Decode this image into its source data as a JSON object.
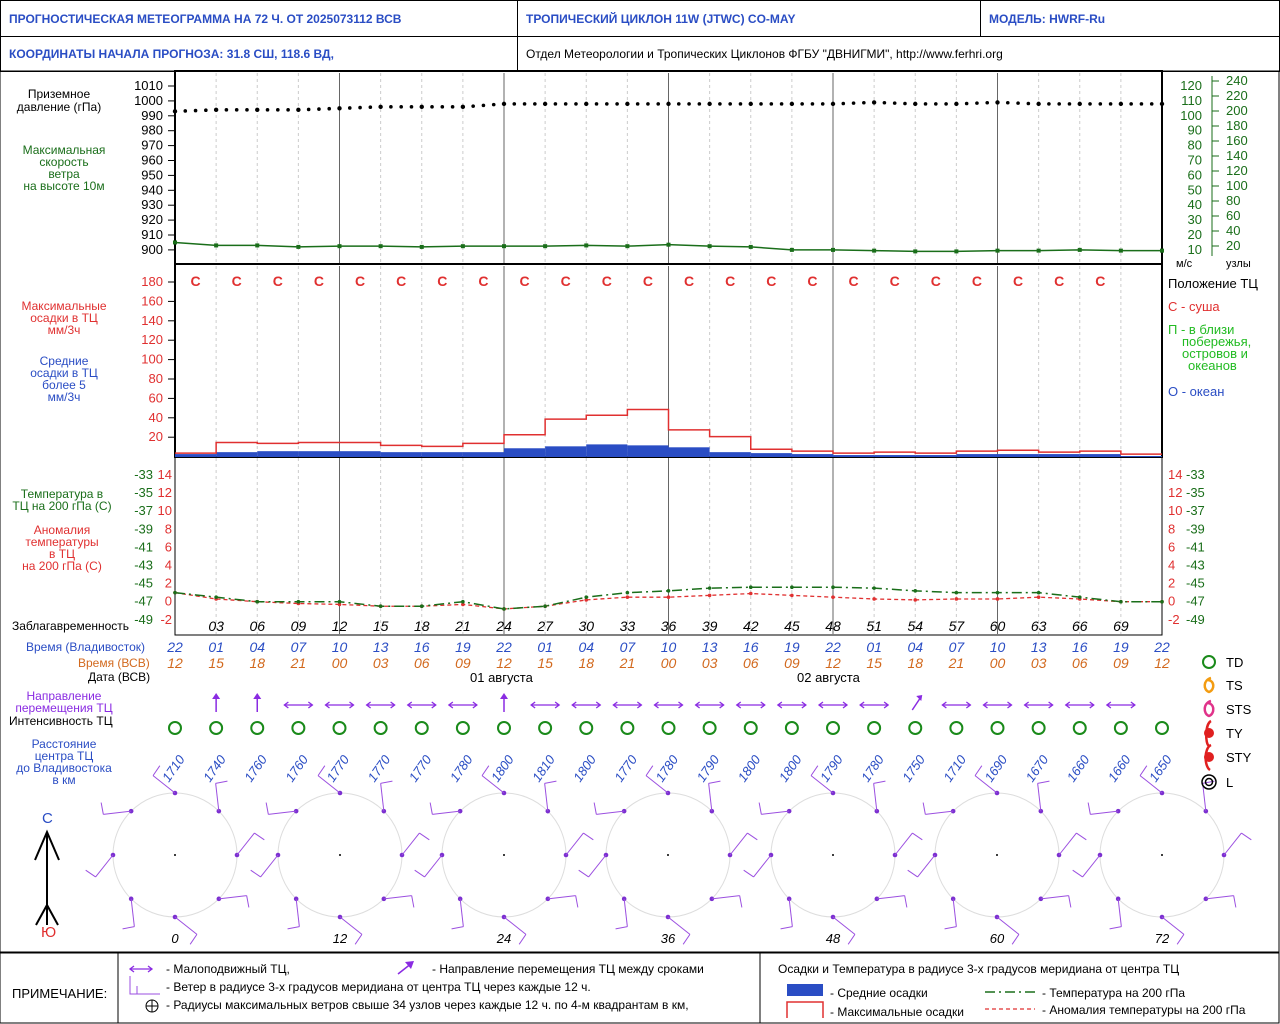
{
  "header": {
    "title": "ПРОГНОСТИЧЕСКАЯ МЕТЕОГРАММА НА 72 Ч. ОТ 2025073112 ВСВ",
    "cyclone": "ТРОПИЧЕСКИЙ ЦИКЛОН  11W  (JTWC)   CO-MAY",
    "model": "МОДЕЛЬ:   HWRF-Ru",
    "coords": "КООРДИНАТЫ НАЧАЛА ПРОГНОЗА:  31.8  СШ,   118.6  ВД,",
    "org": "Отдел Метеорологии и Тропических Циклонов ФГБУ \"ДВНИГМИ\",  http://www.ferhri.org"
  },
  "labels": {
    "pressure": [
      "Приземное",
      "давление (гПа)"
    ],
    "wind": [
      "Максимальная",
      "скорость",
      "ветра",
      "на высоте 10м"
    ],
    "precip_max": [
      "Максимальные",
      "осадки в ТЦ",
      "мм/3ч"
    ],
    "precip_mean": [
      "Средние",
      "осадки в ТЦ",
      "более 5",
      "мм/3ч"
    ],
    "temp200": [
      "Температура в",
      "ТЦ на 200 гПа (С)"
    ],
    "anomaly": [
      "Аномалия",
      "температуры",
      "в ТЦ",
      "на 200 гПа (С)"
    ],
    "lead": "Заблагавременность",
    "time_vl": "Время (Владивосток)",
    "time_utc": "Время (ВСВ)",
    "date": "Дата (ВСВ)",
    "dir": [
      "Направление",
      "перемещения ТЦ"
    ],
    "intensity": "Интенсивность ТЦ",
    "dist": [
      "Расстояние",
      "центра ТЦ",
      "до Владивостока",
      "в км"
    ],
    "ms": "м/с",
    "knots": "узлы",
    "position": "Положение ТЦ",
    "land": "С - суша",
    "coast": [
      "П - в близи",
      "побережья,",
      "островов и",
      "океанов"
    ],
    "ocean": "О - океан",
    "north": "С",
    "south": "Ю",
    "date1": "01 августа",
    "date2": "02 августа"
  },
  "intensity_legend": [
    "TD",
    "TS",
    "STS",
    "TY",
    "STY",
    "L"
  ],
  "footer": {
    "note": "ПРИМЕЧАНИЕ:",
    "slow": "- Малоподвижный ТЦ,",
    "direction": "- Направление перемещения ТЦ между сроками",
    "wind_radius": "- Ветер в радиусе 3-х градусов меридиана от центра ТЦ через каждые 12 ч.",
    "radii": "- Радиусы максимальных ветров свыше 34 узлов через каждые 12 ч. по 4-м квадрантам в км,",
    "right_title": "Осадки и Температура в радиусе 3-х градусов меридиана от центра ТЦ",
    "mean_precip": "- Средние осадки",
    "max_precip": "- Максимальные осадки",
    "temp": "- Температура на 200 гПа",
    "anom": "- Аномалия температуры на 200 гПа"
  },
  "colors": {
    "blue": "#2a4dc4",
    "green": "#1a6e1a",
    "red": "#e03030",
    "orange": "#d2691e",
    "purple": "#8a2be2",
    "bar": "#2a4dc4"
  },
  "axes": {
    "pressure_ticks": [
      "1010",
      "1000",
      "990",
      "980",
      "970",
      "960",
      "950",
      "940",
      "930",
      "920",
      "910",
      "900"
    ],
    "ms_ticks": [
      "120",
      "110",
      "100",
      "90",
      "80",
      "70",
      "60",
      "50",
      "40",
      "30",
      "20",
      "10"
    ],
    "kt_ticks": [
      "240",
      "220",
      "200",
      "180",
      "160",
      "140",
      "120",
      "100",
      "80",
      "60",
      "40",
      "20"
    ],
    "precip_ticks": [
      "180",
      "160",
      "140",
      "120",
      "100",
      "80",
      "60",
      "40",
      "20"
    ],
    "temp_ticks": [
      "-33",
      "-35",
      "-37",
      "-39",
      "-41",
      "-43",
      "-45",
      "-47",
      "-49"
    ],
    "anom_ticks": [
      "14",
      "12",
      "10",
      "8",
      "6",
      "4",
      "2",
      "0",
      "-2"
    ]
  },
  "chart_data": {
    "type": "line",
    "lead_hours": [
      0,
      3,
      6,
      9,
      12,
      15,
      18,
      21,
      24,
      27,
      30,
      33,
      36,
      39,
      42,
      45,
      48,
      51,
      54,
      57,
      60,
      63,
      66,
      69,
      72
    ],
    "lead_labels": [
      "03",
      "06",
      "09",
      "12",
      "15",
      "18",
      "21",
      "24",
      "27",
      "30",
      "33",
      "36",
      "39",
      "42",
      "45",
      "48",
      "51",
      "54",
      "57",
      "60",
      "63",
      "66",
      "69"
    ],
    "time_vl": [
      "22",
      "01",
      "04",
      "07",
      "10",
      "13",
      "16",
      "19",
      "22",
      "01",
      "04",
      "07",
      "10",
      "13",
      "16",
      "19",
      "22",
      "01",
      "04",
      "07",
      "10",
      "13",
      "16",
      "19",
      "22"
    ],
    "time_utc": [
      "12",
      "15",
      "18",
      "21",
      "00",
      "03",
      "06",
      "09",
      "12",
      "15",
      "18",
      "21",
      "00",
      "03",
      "06",
      "09",
      "12",
      "15",
      "18",
      "21",
      "00",
      "03",
      "06",
      "09",
      "12"
    ],
    "pressure_hpa": [
      993,
      994,
      994,
      994,
      995,
      996,
      996,
      996,
      998,
      998,
      998,
      998,
      998,
      998,
      998,
      998,
      998,
      999,
      998,
      998,
      999,
      998,
      998,
      998,
      998
    ],
    "wind_ms": [
      15,
      13,
      13,
      12,
      12.5,
      12.5,
      12,
      12.5,
      12.5,
      12.5,
      13,
      12.5,
      13.5,
      12.5,
      12,
      10,
      10,
      9.5,
      9,
      9,
      9.5,
      9.5,
      10,
      9.5,
      9.5
    ],
    "position_class": [
      "С",
      "С",
      "С",
      "С",
      "С",
      "С",
      "С",
      "С",
      "С",
      "С",
      "С",
      "С",
      "С",
      "С",
      "С",
      "С",
      "С",
      "С",
      "С",
      "С",
      "С",
      "С",
      "С"
    ],
    "precip_max": [
      4,
      15,
      14,
      15,
      15,
      12,
      11,
      14,
      23,
      39,
      43,
      49,
      28,
      21,
      8,
      6,
      4,
      5,
      4,
      6,
      7,
      5,
      6,
      3
    ],
    "precip_mean": [
      3,
      5,
      6,
      6,
      6,
      5,
      5,
      5,
      9,
      11,
      13,
      12,
      10,
      5,
      4,
      3,
      2,
      2,
      2,
      3,
      3,
      3,
      3,
      1
    ],
    "temp200_c": [
      -46.0,
      -46.5,
      -47,
      -47,
      -47,
      -47.5,
      -47.5,
      -47,
      -47.8,
      -47.5,
      -46.5,
      -46,
      -45.8,
      -45.5,
      -45.4,
      -45.4,
      -45.4,
      -45.5,
      -45.8,
      -46.0,
      -46.0,
      -46.0,
      -46.5,
      -47,
      -47
    ],
    "anomaly_c": [
      1,
      0.3,
      0,
      -0.2,
      -0.3,
      -0.5,
      -0.5,
      -0.3,
      -0.8,
      -0.5,
      0.2,
      0.5,
      0.5,
      0.7,
      0.9,
      0.7,
      0.5,
      0.3,
      0.2,
      0.3,
      0.3,
      0.5,
      0.3,
      0,
      0
    ],
    "direction_deg": [
      null,
      0,
      0,
      90,
      90,
      90,
      90,
      90,
      0,
      90,
      90,
      90,
      90,
      90,
      90,
      90,
      90,
      90,
      45,
      90,
      90,
      90,
      90,
      90,
      null
    ],
    "distance_km": [
      "1710",
      "1740",
      "1760",
      "1760",
      "1770",
      "1770",
      "1770",
      "1780",
      "1800",
      "1810",
      "1800",
      "1770",
      "1780",
      "1790",
      "1800",
      "1800",
      "1790",
      "1780",
      "1750",
      "1710",
      "1690",
      "1670",
      "1660",
      "1660",
      "1650"
    ],
    "wind_rose_hours": [
      "0",
      "12",
      "24",
      "36",
      "48",
      "60",
      "72"
    ]
  }
}
